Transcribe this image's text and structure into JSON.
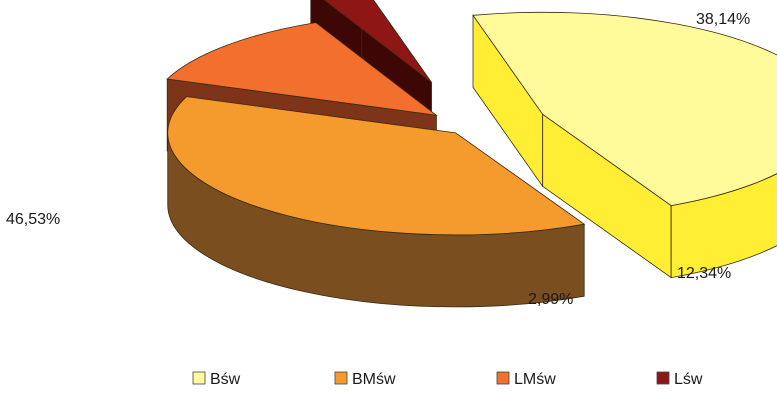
{
  "chart_data": {
    "type": "pie",
    "style": "3d-exploded",
    "categories": [
      "Bśw",
      "BMśw",
      "LMśw",
      "Lśw"
    ],
    "values": [
      46.53,
      38.14,
      12.34,
      2.99
    ],
    "value_labels": [
      "46,53%",
      "38,14%",
      "12,34%",
      "2,99%"
    ],
    "legend": "bottom",
    "colors": {
      "Bśw": {
        "top": "#FFFA9A",
        "side": "#FFEE33"
      },
      "BMśw": {
        "top": "#F59A2C",
        "side": "#7A4E1F"
      },
      "LMśw": {
        "top": "#F26F2E",
        "side": "#7E3418"
      },
      "Lśw": {
        "top": "#8E1716",
        "side": "#3D0706"
      }
    }
  }
}
